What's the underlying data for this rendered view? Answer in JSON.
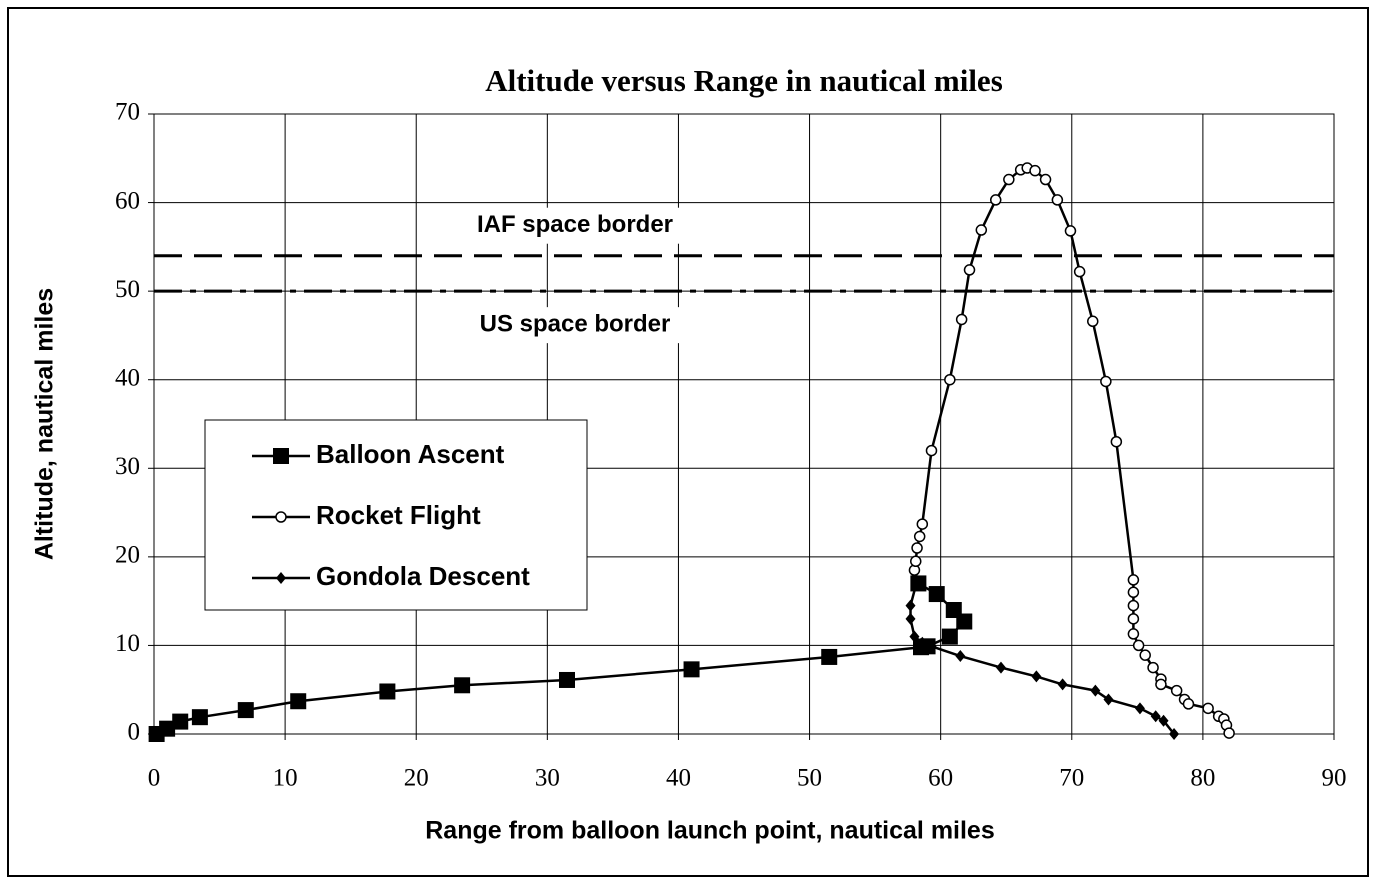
{
  "chart_data": {
    "type": "line",
    "title": "Altitude versus Range in nautical miles",
    "x_label": "Range from balloon launch point, nautical miles",
    "y_label": "Altitude, nautical miles",
    "xlim": [
      0,
      90
    ],
    "xticks": [
      0,
      10,
      20,
      30,
      40,
      50,
      60,
      70,
      80,
      90
    ],
    "ylim": [
      0,
      70
    ],
    "yticks": [
      0,
      10,
      20,
      30,
      40,
      50,
      60,
      70
    ],
    "grid": true,
    "legend": "left",
    "hlines": [
      {
        "y": 54,
        "label": "IAF space border",
        "dash": "dashed"
      },
      {
        "y": 50,
        "label": "US space border",
        "dash": "dashdot"
      }
    ],
    "series": [
      {
        "name": "Balloon Ascent",
        "color": "#000000",
        "marker": "square",
        "x": [
          0.2,
          1,
          2,
          3.5,
          7,
          11,
          17.8,
          23.5,
          31.5,
          41,
          51.5,
          58.5,
          59,
          60.7,
          61.8,
          61,
          59.7,
          58.3
        ],
        "values": [
          0,
          0.6,
          1.4,
          1.9,
          2.7,
          3.7,
          4.8,
          5.5,
          6.1,
          7.3,
          8.7,
          9.8,
          9.9,
          11,
          12.7,
          14,
          15.8,
          17
        ]
      },
      {
        "name": "Rocket Flight",
        "color": "#000000",
        "marker": "circle",
        "x": [
          58,
          58.1,
          58.2,
          58.4,
          58.6,
          59.3,
          60.7,
          61.6,
          62.2,
          63.1,
          64.2,
          65.2,
          66.1,
          66.6,
          67.2,
          68,
          68.9,
          69.9,
          70.6,
          71.6,
          72.6,
          73.4,
          74.7,
          74.7,
          74.7,
          74.7,
          74.7,
          75.1,
          75.6,
          76.2,
          76.8,
          76.8,
          78,
          78.6,
          78.9,
          80.4,
          81.2,
          81.6,
          81.8,
          82
        ],
        "values": [
          18.5,
          19.5,
          21,
          22.3,
          23.7,
          32,
          40,
          46.8,
          52.4,
          56.9,
          60.3,
          62.6,
          63.7,
          63.9,
          63.6,
          62.6,
          60.3,
          56.8,
          52.2,
          46.6,
          39.8,
          33,
          17.4,
          16,
          14.5,
          13,
          11.3,
          10,
          8.9,
          7.5,
          6.2,
          5.6,
          4.9,
          3.9,
          3.4,
          2.9,
          2,
          1.7,
          1,
          0.1
        ]
      },
      {
        "name": "Gondola Descent",
        "color": "#000000",
        "marker": "diamond",
        "x": [
          58.2,
          57.7,
          57.7,
          58,
          58.6,
          59.3,
          61.5,
          64.6,
          67.3,
          69.3,
          71.8,
          72.8,
          75.2,
          76.4,
          77,
          77.8
        ],
        "values": [
          17.3,
          14.5,
          13,
          11,
          10.3,
          9.9,
          8.8,
          7.5,
          6.5,
          5.6,
          4.9,
          3.9,
          2.9,
          2,
          1.5,
          0
        ]
      }
    ]
  }
}
